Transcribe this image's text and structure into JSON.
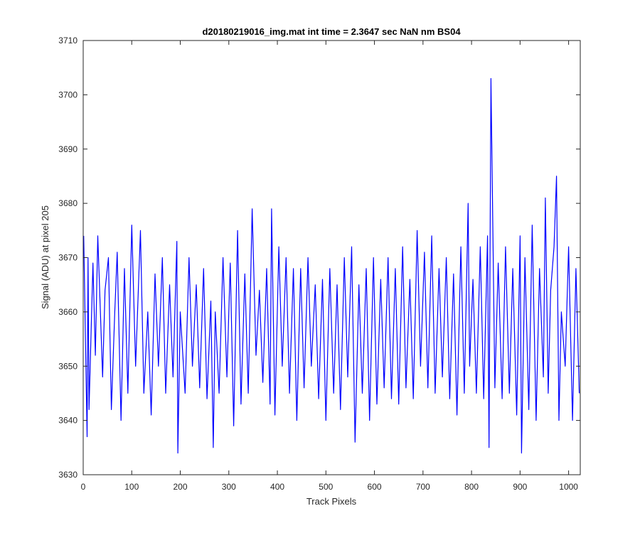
{
  "chart_data": {
    "type": "line",
    "title": "d20180219016_img.mat int time = 2.3647 sec  NaN nm BS04",
    "xlabel": "Track Pixels",
    "ylabel": "Signal (ADU) at pixel 205",
    "xlim": [
      0,
      1024
    ],
    "ylim": [
      3630,
      3710
    ],
    "xticks": [
      0,
      100,
      200,
      300,
      400,
      500,
      600,
      700,
      800,
      900,
      1000
    ],
    "yticks": [
      3630,
      3640,
      3650,
      3660,
      3670,
      3680,
      3690,
      3700,
      3710
    ],
    "grid": false,
    "series": [
      {
        "color": "#0000ff",
        "x": [
          1,
          8,
          10,
          12,
          20,
          25,
          30,
          40,
          45,
          52,
          58,
          65,
          70,
          78,
          85,
          92,
          100,
          108,
          118,
          125,
          133,
          140,
          148,
          155,
          163,
          170,
          178,
          185,
          193,
          195,
          200,
          210,
          218,
          225,
          233,
          240,
          248,
          255,
          263,
          268,
          272,
          280,
          288,
          296,
          303,
          310,
          318,
          325,
          333,
          340,
          348,
          356,
          363,
          370,
          378,
          385,
          388,
          395,
          403,
          410,
          418,
          425,
          433,
          440,
          448,
          455,
          463,
          470,
          478,
          485,
          493,
          500,
          508,
          516,
          523,
          530,
          538,
          545,
          553,
          560,
          568,
          575,
          583,
          590,
          598,
          605,
          613,
          620,
          628,
          635,
          643,
          650,
          658,
          665,
          673,
          680,
          688,
          695,
          703,
          710,
          718,
          725,
          733,
          740,
          748,
          755,
          763,
          770,
          778,
          785,
          793,
          796,
          803,
          810,
          818,
          825,
          833,
          836,
          840,
          848,
          855,
          863,
          870,
          878,
          885,
          893,
          900,
          903,
          910,
          918,
          925,
          933,
          940,
          948,
          952,
          958,
          963,
          970,
          975,
          980,
          985,
          993,
          1000,
          1008,
          1015,
          1022
        ],
        "y": [
          3674,
          3637,
          3670,
          3642,
          3669,
          3652,
          3674,
          3648,
          3664,
          3670,
          3642,
          3660,
          3671,
          3640,
          3668,
          3645,
          3676,
          3650,
          3675,
          3645,
          3660,
          3641,
          3667,
          3650,
          3670,
          3645,
          3665,
          3648,
          3673,
          3634,
          3660,
          3645,
          3670,
          3650,
          3665,
          3646,
          3668,
          3644,
          3662,
          3635,
          3660,
          3645,
          3670,
          3648,
          3669,
          3639,
          3675,
          3643,
          3667,
          3645,
          3679,
          3652,
          3664,
          3647,
          3668,
          3643,
          3679,
          3641,
          3672,
          3650,
          3670,
          3645,
          3668,
          3640,
          3668,
          3646,
          3670,
          3650,
          3665,
          3644,
          3666,
          3640,
          3668,
          3645,
          3665,
          3642,
          3670,
          3648,
          3672,
          3636,
          3665,
          3645,
          3668,
          3640,
          3670,
          3643,
          3666,
          3646,
          3670,
          3644,
          3668,
          3643,
          3672,
          3646,
          3666,
          3644,
          3675,
          3650,
          3671,
          3646,
          3674,
          3645,
          3668,
          3648,
          3670,
          3644,
          3667,
          3641,
          3672,
          3645,
          3680,
          3650,
          3666,
          3645,
          3672,
          3644,
          3674,
          3635,
          3703,
          3646,
          3669,
          3644,
          3672,
          3645,
          3668,
          3641,
          3674,
          3634,
          3670,
          3642,
          3676,
          3640,
          3668,
          3648,
          3681,
          3645,
          3664,
          3672,
          3685,
          3640,
          3660,
          3650,
          3672,
          3640,
          3668,
          3645
        ]
      }
    ]
  }
}
